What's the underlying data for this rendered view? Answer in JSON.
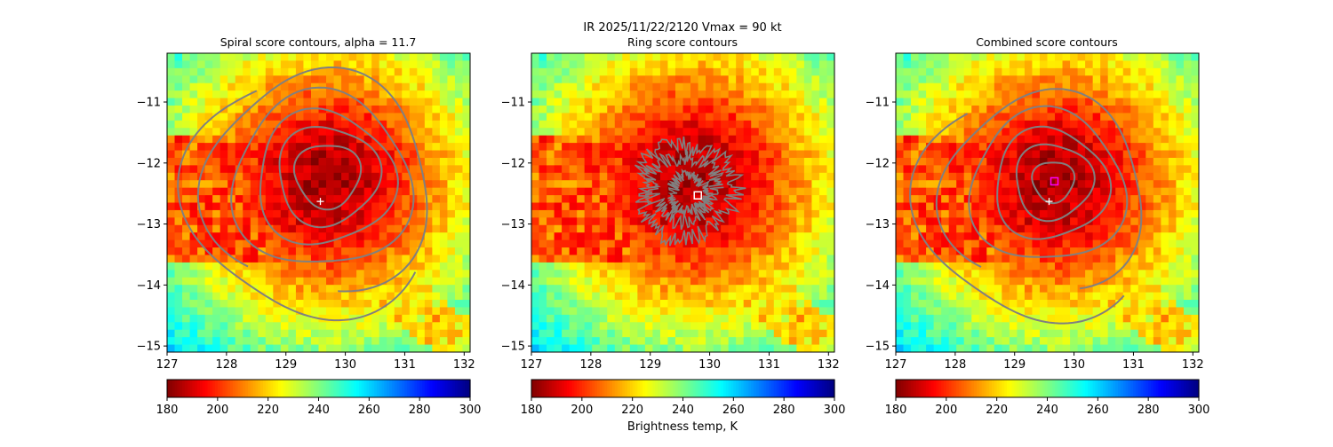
{
  "suptitle": "IR  2025/11/22/2120    Vmax = 90 kt",
  "colormap": {
    "name": "jet_r",
    "range": [
      180,
      300
    ],
    "ticks": [
      180,
      200,
      220,
      240,
      260,
      280,
      300
    ],
    "label": "Brightness temp, K"
  },
  "chart_data": [
    {
      "type": "heatmap",
      "title": "Spiral score contours, alpha = 11.7",
      "xlim": [
        127,
        132.1
      ],
      "ylim": [
        -15.1,
        -10.2
      ],
      "xticks": [
        127,
        128,
        129,
        130,
        131,
        132
      ],
      "yticks": [
        -15,
        -14,
        -13,
        -12,
        -11
      ],
      "storm_center": {
        "lon": 129.7,
        "lat": -12.3,
        "cold_radius_deg": 0.9
      },
      "contour_color": "#808080",
      "contours": [
        {
          "cx": 129.7,
          "cy": -12.2,
          "r": 0.55
        },
        {
          "cx": 129.7,
          "cy": -12.2,
          "r": 0.85
        },
        {
          "cx": 129.65,
          "cy": -12.25,
          "r": 1.15
        },
        {
          "cx": 129.6,
          "cy": -12.3,
          "r": 1.5
        },
        {
          "cx": 129.55,
          "cy": -12.35,
          "r": 1.9,
          "start_deg": -80,
          "end_deg": 230
        },
        {
          "cx": 129.5,
          "cy": -12.45,
          "r": 2.15,
          "start_deg": 120,
          "end_deg": 320
        }
      ],
      "markers": [
        {
          "lon": 129.58,
          "lat": -12.63,
          "symbol": "+",
          "color": "#ffffff"
        }
      ]
    },
    {
      "type": "heatmap",
      "title": "Ring score contours",
      "xlim": [
        127,
        132.1
      ],
      "ylim": [
        -15.1,
        -10.2
      ],
      "xticks": [
        127,
        128,
        129,
        130,
        131,
        132
      ],
      "yticks": [
        -15,
        -14,
        -13,
        -12,
        -11
      ],
      "storm_center": {
        "lon": 129.7,
        "lat": -12.3,
        "cold_radius_deg": 0.9
      },
      "contour_color": "#808080",
      "contours": [
        {
          "cx": 129.55,
          "cy": -12.4,
          "r": 0.55,
          "wiggle": 0.14
        },
        {
          "cx": 129.6,
          "cy": -12.45,
          "r": 0.8,
          "wiggle": 0.16
        },
        {
          "cx": 129.65,
          "cy": -12.5,
          "r": 0.3,
          "wiggle": 0.1
        }
      ],
      "markers": [
        {
          "lon": 129.8,
          "lat": -12.53,
          "symbol": "square",
          "color": "#ffffff"
        }
      ]
    },
    {
      "type": "heatmap",
      "title": "Combined score contours",
      "xlim": [
        127,
        132.1
      ],
      "ylim": [
        -15.1,
        -10.2
      ],
      "xticks": [
        127,
        128,
        129,
        130,
        131,
        132
      ],
      "yticks": [
        -15,
        -14,
        -13,
        -12,
        -11
      ],
      "storm_center": {
        "lon": 129.7,
        "lat": -12.3,
        "cold_radius_deg": 0.9
      },
      "contour_color": "#808080",
      "contours": [
        {
          "cx": 129.65,
          "cy": -12.3,
          "r": 0.35
        },
        {
          "cx": 129.65,
          "cy": -12.3,
          "r": 0.65
        },
        {
          "cx": 129.6,
          "cy": -12.35,
          "r": 0.95
        },
        {
          "cx": 129.55,
          "cy": -12.4,
          "r": 1.3
        },
        {
          "cx": 129.5,
          "cy": -12.5,
          "r": 1.7,
          "start_deg": -70,
          "end_deg": 230
        },
        {
          "cx": 129.45,
          "cy": -12.6,
          "r": 2.05,
          "start_deg": 130,
          "end_deg": 310
        }
      ],
      "markers": [
        {
          "lon": 129.58,
          "lat": -12.63,
          "symbol": "+",
          "color": "#ffffff"
        },
        {
          "lon": 129.67,
          "lat": -12.3,
          "symbol": "square",
          "color": "#ff00ff"
        }
      ]
    }
  ]
}
